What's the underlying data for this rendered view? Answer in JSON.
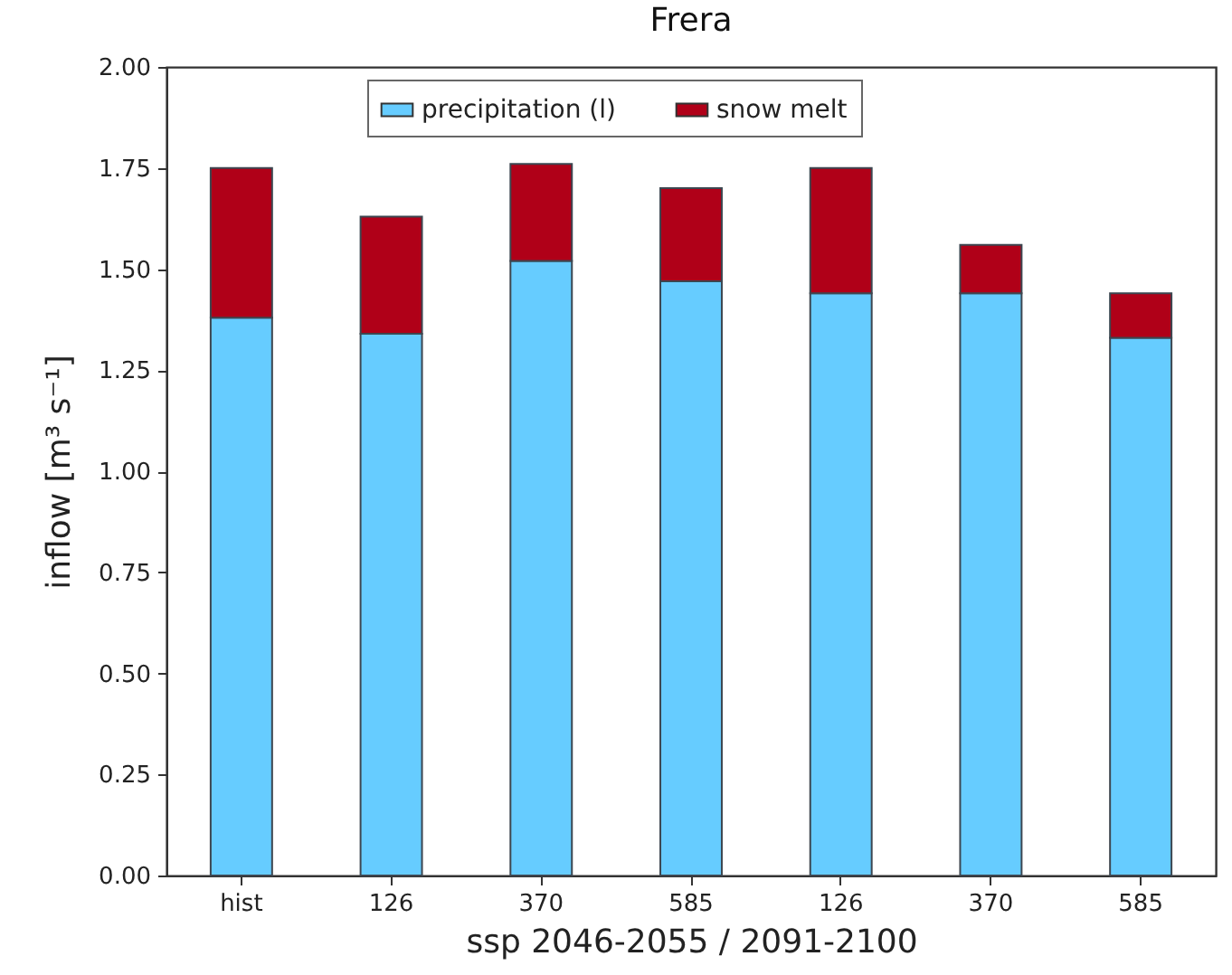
{
  "chart_data": {
    "type": "bar",
    "title": "Frera",
    "xlabel": "ssp 2046-2055 / 2091-2100",
    "ylabel": "inflow [m³ s⁻¹]",
    "categories": [
      "hist",
      "126",
      "370",
      "585",
      "126",
      "370",
      "585"
    ],
    "stacked": true,
    "series": [
      {
        "name": "precipitation (l)",
        "color": "#66ccff",
        "values": [
          1.38,
          1.34,
          1.52,
          1.47,
          1.44,
          1.44,
          1.33
        ]
      },
      {
        "name": "snow melt",
        "color": "#b00018",
        "values": [
          0.37,
          0.29,
          0.24,
          0.23,
          0.31,
          0.12,
          0.11
        ]
      }
    ],
    "ylim": [
      0,
      2
    ],
    "yticks": [
      {
        "value": 0,
        "label": "0.00"
      },
      0.25,
      {
        "value": 0.5,
        "label": "0.50"
      },
      0.75,
      {
        "value": 1,
        "label": "1.00"
      },
      1.25,
      {
        "value": 1.5,
        "label": "1.50"
      },
      1.75,
      {
        "value": 2,
        "label": "2.00"
      }
    ],
    "legend": "top"
  }
}
